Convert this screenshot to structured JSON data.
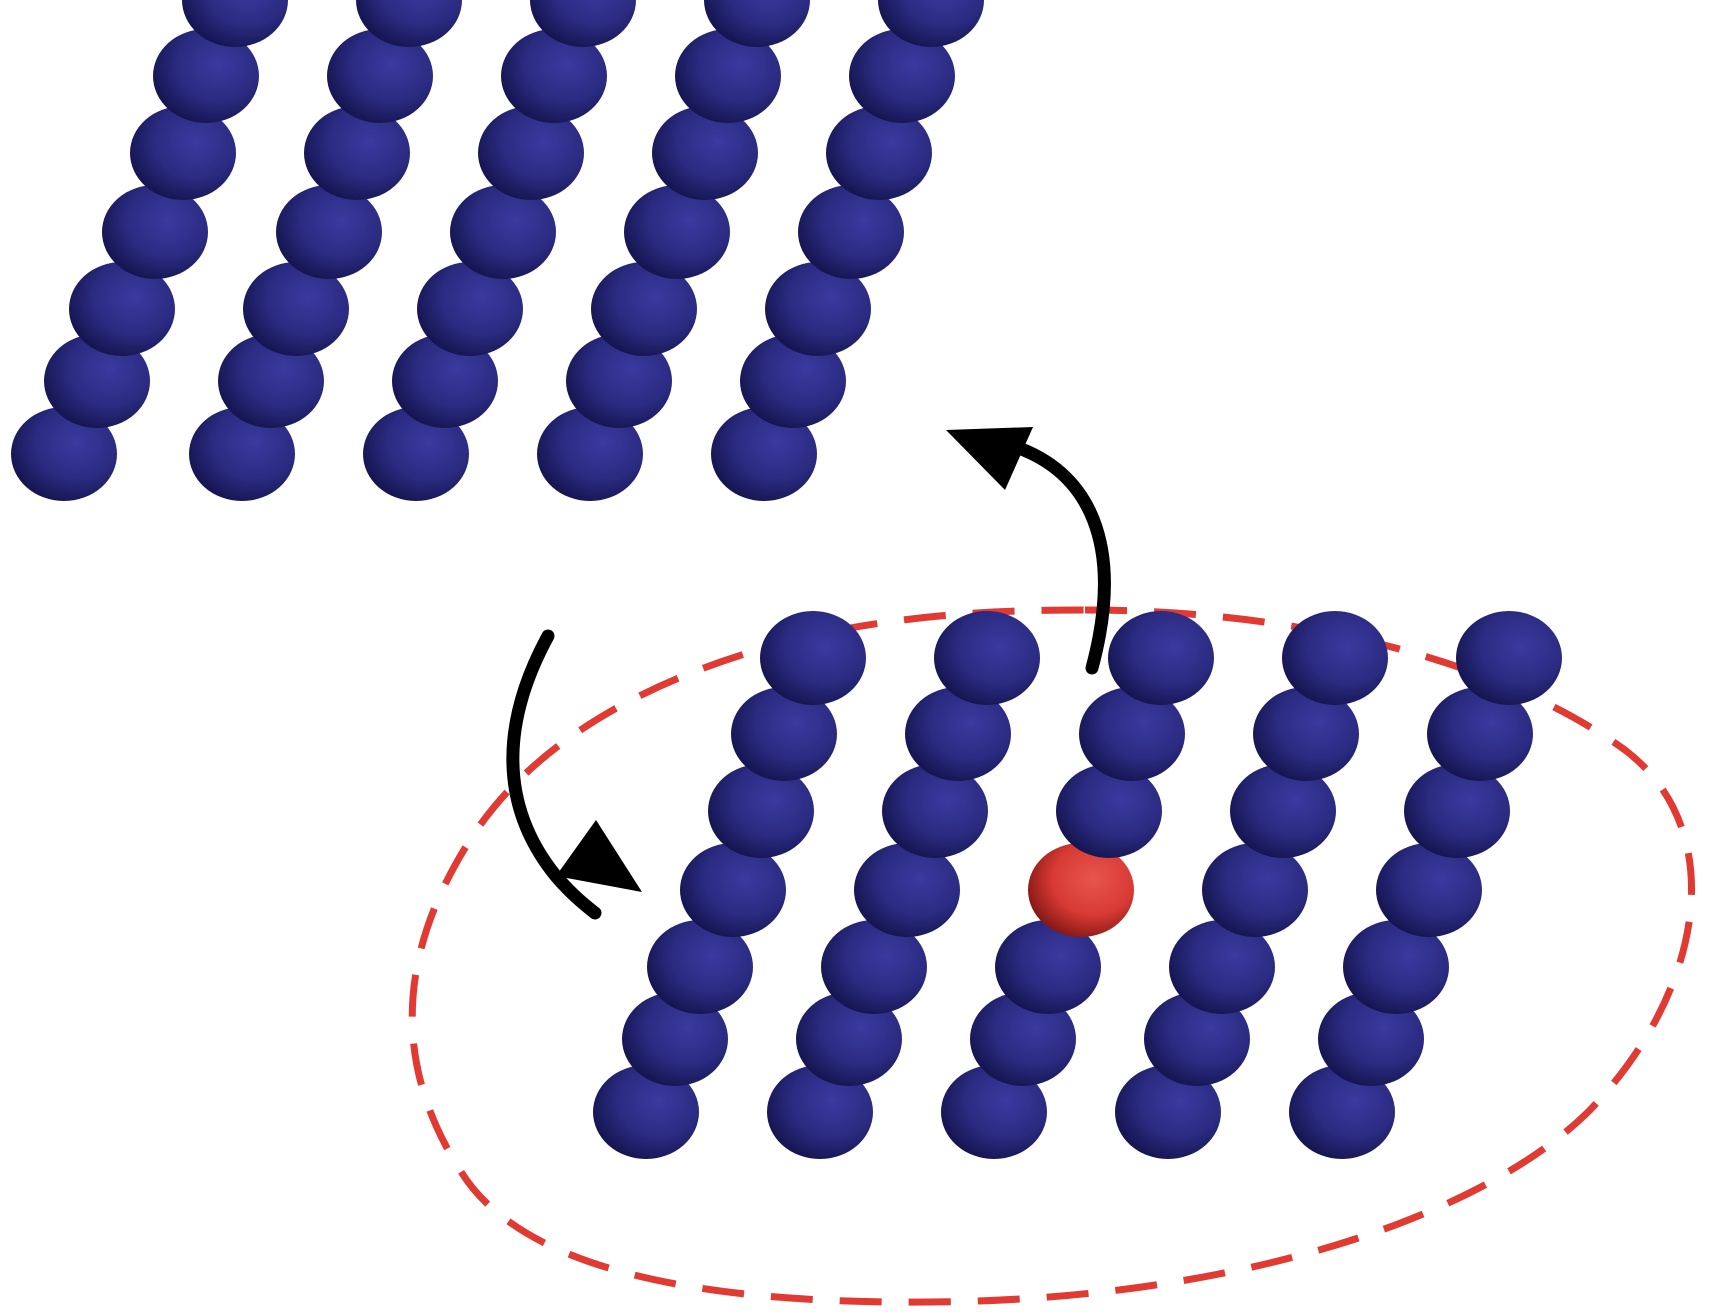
{
  "diagram": {
    "description_free": true,
    "colors": {
      "background": "#ffffff",
      "atom_main": "#2b2b82",
      "atom_light": "#3a3aa0",
      "atom_dark": "#12124a",
      "defect_main": "#d83a34",
      "defect_light": "#e8554e",
      "defect_dark": "#7a1410",
      "arrow": "#000000",
      "region_outline": "#e03a33"
    },
    "upper_lattice": {
      "chains": 5,
      "atoms_per_chain": 7
    },
    "lower_lattice": {
      "chains": 5,
      "atoms_per_chain": 7,
      "defect": {
        "chain": 3,
        "position_from_top": 4,
        "type": "red-atom"
      }
    },
    "arrows": [
      {
        "direction": "down",
        "from": "upper_lattice",
        "to": "lower_lattice"
      },
      {
        "direction": "up",
        "from": "lower_lattice",
        "to": "upper_lattice"
      }
    ],
    "highlight_region": {
      "shape": "ellipse",
      "style": "dashed",
      "encloses": "lower_lattice"
    }
  }
}
